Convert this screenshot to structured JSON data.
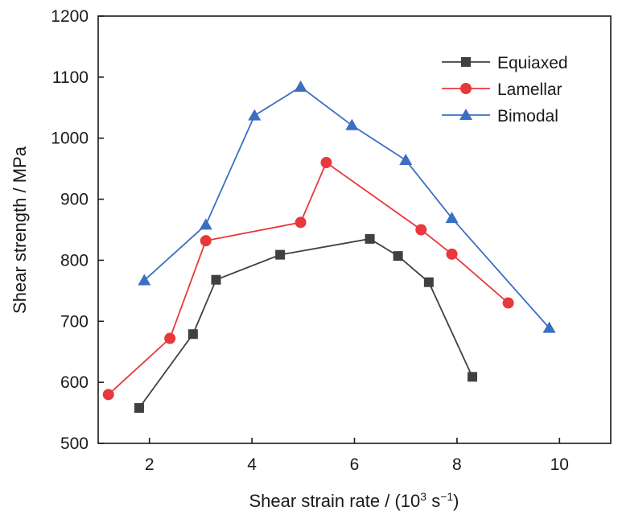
{
  "chart_data": {
    "type": "line",
    "xlabel": "Shear strain rate / (10",
    "xlabel_exponent": "3",
    "xlabel_unit": " s",
    "xlabel_unit_exponent": "−1",
    "xlabel_close": ")",
    "ylabel": "Shear strength / MPa",
    "xlim": [
      1.0,
      11.0
    ],
    "ylim": [
      500,
      1200
    ],
    "xticks": [
      2,
      4,
      6,
      8,
      10
    ],
    "yticks": [
      500,
      600,
      700,
      800,
      900,
      1000,
      1100,
      1200
    ],
    "grid": false,
    "legend_position": "top-right",
    "series": [
      {
        "name": "Equiaxed",
        "color": "#404040",
        "marker": "square",
        "x": [
          1.8,
          2.85,
          3.3,
          4.55,
          6.3,
          6.85,
          7.45,
          8.3
        ],
        "y": [
          558,
          679,
          768,
          809,
          835,
          807,
          764,
          609
        ]
      },
      {
        "name": "Lamellar",
        "color": "#e8383c",
        "marker": "circle",
        "x": [
          1.2,
          2.4,
          3.1,
          4.95,
          5.45,
          7.3,
          7.9,
          9.0
        ],
        "y": [
          580,
          672,
          832,
          862,
          960,
          850,
          810,
          730
        ]
      },
      {
        "name": "Bimodal",
        "color": "#3a6fc4",
        "marker": "triangle",
        "x": [
          1.9,
          3.1,
          4.05,
          4.95,
          5.95,
          7.0,
          7.9,
          9.8
        ],
        "y": [
          767,
          858,
          1037,
          1084,
          1021,
          964,
          869,
          689
        ]
      }
    ]
  }
}
